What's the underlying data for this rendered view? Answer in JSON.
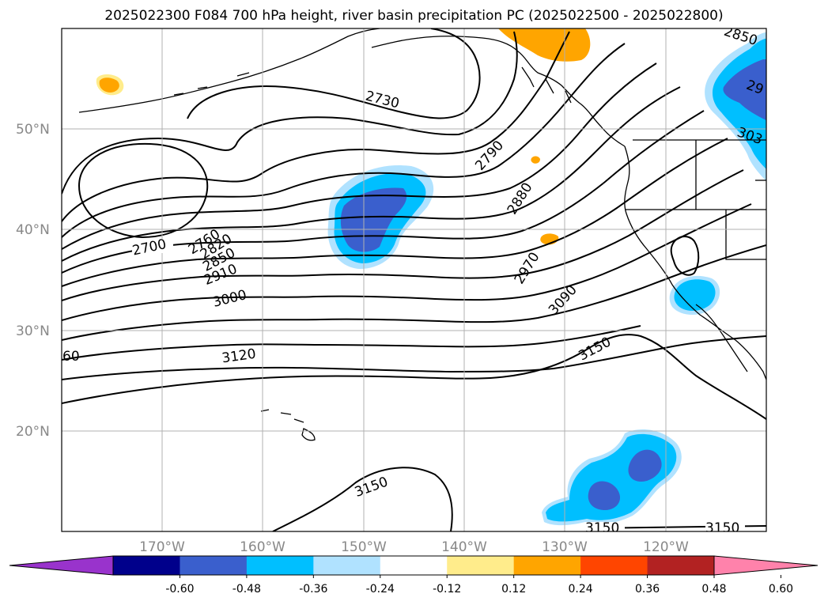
{
  "title": "2025022300 F084 700 hPa height, river basin precipitation PC (2025022500 - 2025022800)",
  "lat_ticks": [
    "50°N",
    "40°N",
    "30°N",
    "20°N"
  ],
  "lon_ticks": [
    "170°W",
    "160°W",
    "150°W",
    "140°W",
    "130°W",
    "120°W"
  ],
  "contour_labels": [
    "2700",
    "2760",
    "2820",
    "2850",
    "2910",
    "3000",
    "3120",
    "60",
    "2730",
    "2790",
    "2880",
    "2970",
    "3090",
    "3150",
    "3150",
    "3150",
    "3150",
    "2850",
    "29",
    "303"
  ],
  "colorbar": {
    "colors": [
      "#9933cc",
      "#00008b",
      "#3a5fcd",
      "#00bfff",
      "#b0e2ff",
      "#ffffff",
      "#ffec8b",
      "#ffa500",
      "#ff4500",
      "#b22222",
      "#ff82ab"
    ],
    "labels": [
      "-0.60",
      "-0.48",
      "-0.36",
      "-0.24",
      "-0.12",
      "0.12",
      "0.24",
      "0.36",
      "0.48",
      "0.60"
    ]
  },
  "colors": {
    "land_outline": "#000000",
    "grid": "#b0b0b0",
    "contour": "#000000"
  }
}
